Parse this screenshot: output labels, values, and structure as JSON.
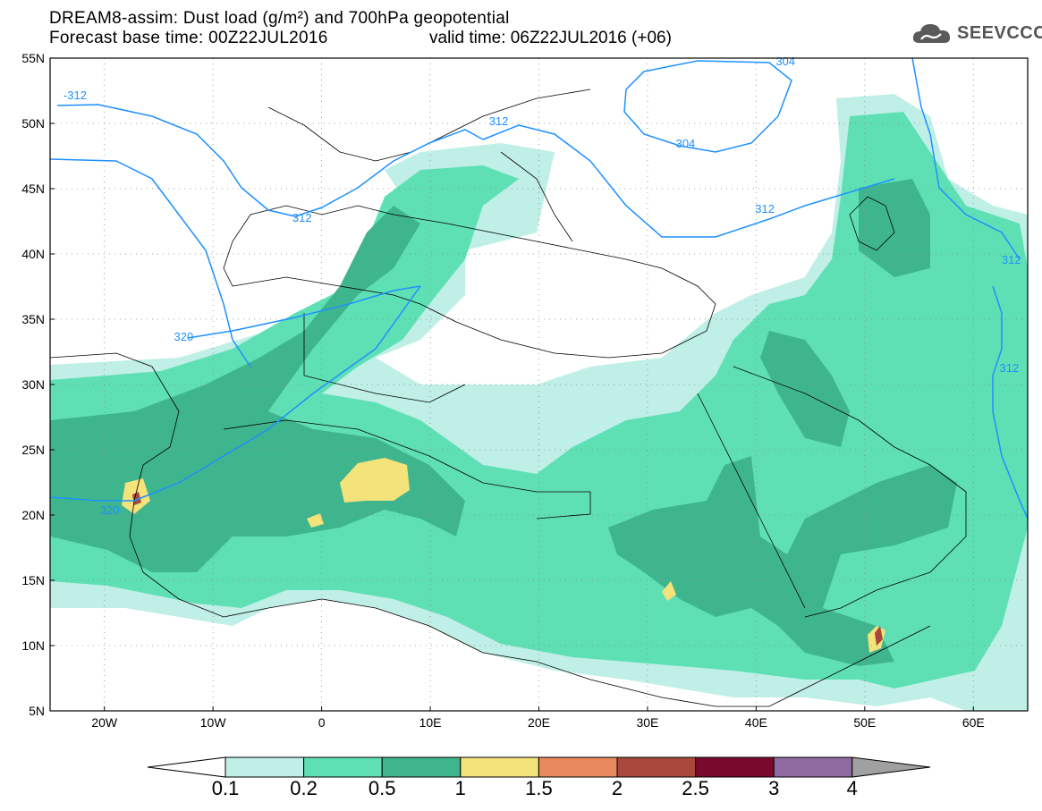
{
  "title": {
    "line1": "DREAM8-assim: Dust load (g/m²) and 700hPa geopotential",
    "line2_left": "Forecast base time: 00Z22JUL2016",
    "line2_right": "valid time: 06Z22JUL2016 (+06)"
  },
  "logo": {
    "text": "SEEVCCC",
    "icon": "cloud-icon"
  },
  "map": {
    "lon_range": [
      -25,
      65
    ],
    "lat_range": [
      5,
      55
    ],
    "lat_ticks": [
      {
        "value": 55,
        "label": "55N"
      },
      {
        "value": 50,
        "label": "50N"
      },
      {
        "value": 45,
        "label": "45N"
      },
      {
        "value": 40,
        "label": "40N"
      },
      {
        "value": 35,
        "label": "35N"
      },
      {
        "value": 30,
        "label": "30N"
      },
      {
        "value": 25,
        "label": "25N"
      },
      {
        "value": 20,
        "label": "20N"
      },
      {
        "value": 15,
        "label": "15N"
      },
      {
        "value": 10,
        "label": "10N"
      },
      {
        "value": 5,
        "label": "5N"
      }
    ],
    "lon_ticks": [
      {
        "value": -20,
        "label": "20W"
      },
      {
        "value": -10,
        "label": "10W"
      },
      {
        "value": 0,
        "label": "0"
      },
      {
        "value": 10,
        "label": "10E"
      },
      {
        "value": 20,
        "label": "20E"
      },
      {
        "value": 30,
        "label": "30E"
      },
      {
        "value": 40,
        "label": "40E"
      },
      {
        "value": 50,
        "label": "50E"
      },
      {
        "value": 60,
        "label": "60E"
      }
    ],
    "contour_color": "#1e90ff",
    "contour_labels": [
      {
        "text": "-312",
        "lon": -22.7,
        "lat": 52.2
      },
      {
        "text": "312",
        "lon": -1.8,
        "lat": 42.8
      },
      {
        "text": "320",
        "lon": -12.7,
        "lat": 33.7
      },
      {
        "text": "320",
        "lon": -19.5,
        "lat": 20.4
      },
      {
        "text": "312",
        "lon": 16.3,
        "lat": 50.2
      },
      {
        "text": "304",
        "lon": 42.7,
        "lat": 54.8
      },
      {
        "text": "304",
        "lon": 33.5,
        "lat": 48.5
      },
      {
        "text": "312",
        "lon": 40.8,
        "lat": 43.5
      },
      {
        "text": "312",
        "lon": 63.5,
        "lat": 39.6
      },
      {
        "text": "312",
        "lon": 63.3,
        "lat": 31.3
      }
    ]
  },
  "colorbar": {
    "levels": [
      "0.1",
      "0.2",
      "0.5",
      "1",
      "1.5",
      "2",
      "2.5",
      "3",
      "4"
    ],
    "colors": [
      "#bfefe6",
      "#5fe0b4",
      "#3fb58e",
      "#f4e27a",
      "#e8895e",
      "#a8473a",
      "#7a0a2c",
      "#8d6a9f"
    ],
    "under_color": "#ffffff",
    "over_color": "#a0a0a0"
  }
}
